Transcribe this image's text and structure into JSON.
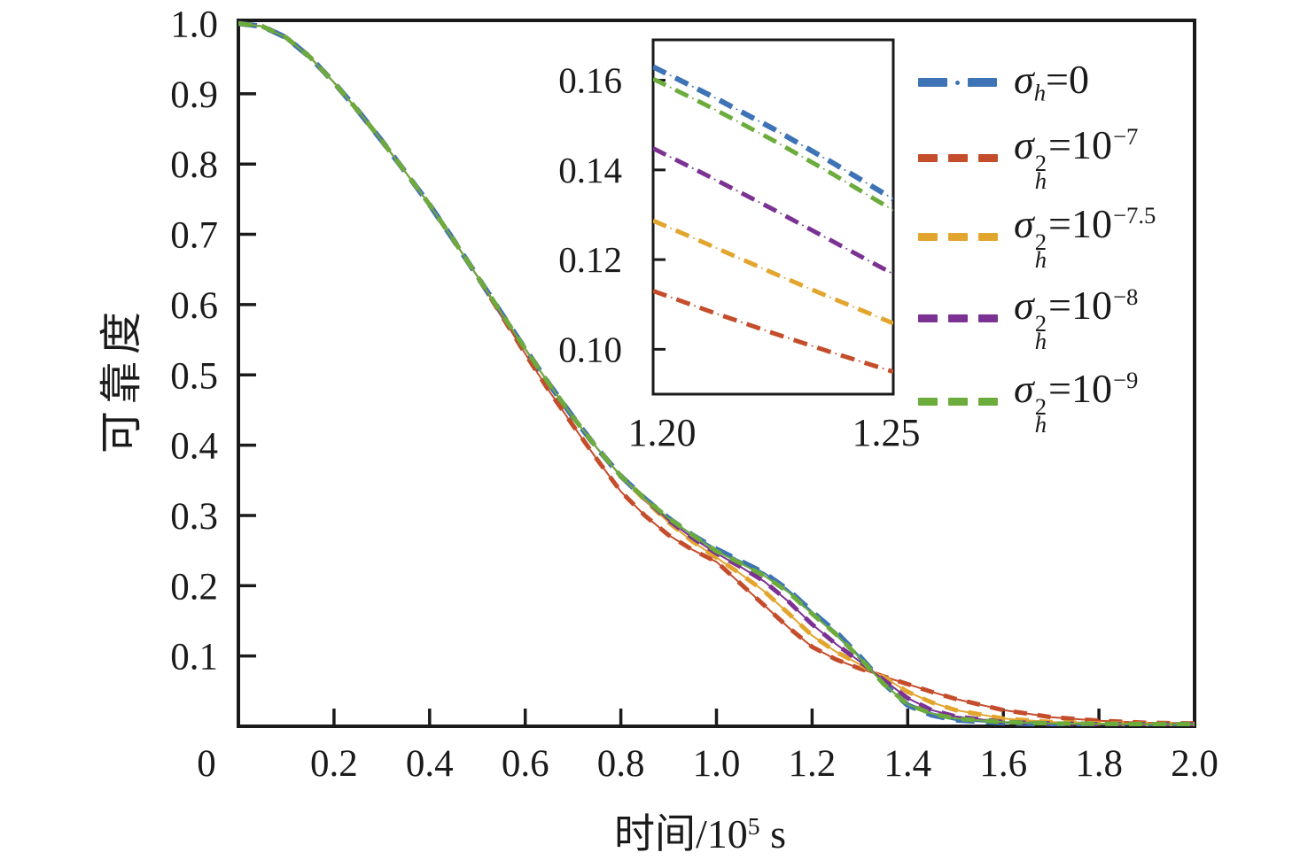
{
  "chart_data": {
    "type": "line",
    "title": "",
    "xlabel": "时间/10^5 s",
    "ylabel": "可靠度",
    "x_axis_label": {
      "pre": "时间/10",
      "sup": "5",
      "post": " s"
    },
    "y_axis_label": "可靠度",
    "xlim": [
      0,
      2.0
    ],
    "ylim": [
      0,
      1.0
    ],
    "grid": false,
    "legend_position": "upper right, outside inset",
    "background": "#FFFFFF",
    "axis_color": "#1A1A1A",
    "x_ticks": [
      0,
      0.2,
      0.4,
      0.6,
      0.8,
      1.0,
      1.2,
      1.4,
      1.6,
      1.8,
      2.0
    ],
    "x_tick_labels": [
      "0",
      "0.2",
      "0.4",
      "0.6",
      "0.8",
      "1.0",
      "1.2",
      "1.4",
      "1.6",
      "1.8",
      "2.0"
    ],
    "y_ticks": [
      0.1,
      0.2,
      0.3,
      0.4,
      0.5,
      0.6,
      0.7,
      0.8,
      0.9,
      1.0
    ],
    "y_tick_labels": [
      "0.1",
      "0.2",
      "0.3",
      "0.4",
      "0.5",
      "0.6",
      "0.7",
      "0.8",
      "0.9",
      "1.0"
    ],
    "x": [
      0.0,
      0.05,
      0.1,
      0.15,
      0.2,
      0.25,
      0.3,
      0.35,
      0.4,
      0.45,
      0.5,
      0.55,
      0.6,
      0.65,
      0.7,
      0.75,
      0.8,
      0.85,
      0.9,
      0.95,
      1.0,
      1.05,
      1.1,
      1.15,
      1.2,
      1.25,
      1.3,
      1.35,
      1.4,
      1.45,
      1.5,
      1.6,
      1.7,
      1.8,
      1.9,
      2.0
    ],
    "series": [
      {
        "name": "sigma-h-0",
        "label": "σh=0",
        "color": "#3E74B5",
        "y": [
          1.0,
          0.996,
          0.98,
          0.952,
          0.916,
          0.876,
          0.833,
          0.788,
          0.742,
          0.692,
          0.64,
          0.588,
          0.537,
          0.487,
          0.44,
          0.396,
          0.356,
          0.324,
          0.296,
          0.272,
          0.252,
          0.235,
          0.218,
          0.194,
          0.163,
          0.134,
          0.099,
          0.061,
          0.03,
          0.016,
          0.009,
          0.005,
          0.003,
          0.0025,
          0.002,
          0.002
        ]
      },
      {
        "name": "sigma2-1e-7",
        "label": "σh2=10^-7",
        "color": "#C44D2B",
        "y": [
          1.0,
          0.996,
          0.98,
          0.952,
          0.916,
          0.876,
          0.833,
          0.788,
          0.742,
          0.692,
          0.64,
          0.585,
          0.53,
          0.477,
          0.428,
          0.38,
          0.334,
          0.3,
          0.272,
          0.251,
          0.234,
          0.203,
          0.172,
          0.141,
          0.113,
          0.095,
          0.082,
          0.071,
          0.06,
          0.049,
          0.039,
          0.023,
          0.013,
          0.008,
          0.005,
          0.004
        ]
      },
      {
        "name": "sigma2-1e-7p5",
        "label": "σh2=10^-7.5",
        "color": "#E2A52D",
        "y": [
          1.0,
          0.996,
          0.98,
          0.952,
          0.916,
          0.876,
          0.833,
          0.788,
          0.742,
          0.692,
          0.64,
          0.588,
          0.537,
          0.487,
          0.44,
          0.396,
          0.356,
          0.322,
          0.29,
          0.263,
          0.24,
          0.217,
          0.192,
          0.161,
          0.129,
          0.106,
          0.088,
          0.07,
          0.049,
          0.034,
          0.023,
          0.011,
          0.006,
          0.004,
          0.0035,
          0.003
        ]
      },
      {
        "name": "sigma2-1e-8",
        "label": "σh2=10^-8",
        "color": "#7C3292",
        "y": [
          1.0,
          0.996,
          0.98,
          0.952,
          0.916,
          0.876,
          0.833,
          0.788,
          0.742,
          0.692,
          0.64,
          0.588,
          0.537,
          0.487,
          0.44,
          0.396,
          0.356,
          0.324,
          0.293,
          0.268,
          0.246,
          0.227,
          0.206,
          0.178,
          0.145,
          0.117,
          0.092,
          0.066,
          0.04,
          0.023,
          0.014,
          0.006,
          0.004,
          0.003,
          0.003,
          0.003
        ]
      },
      {
        "name": "sigma2-1e-9",
        "label": "σh2=10^-9",
        "color": "#6BAC3C",
        "y": [
          1.0,
          0.996,
          0.98,
          0.952,
          0.916,
          0.876,
          0.833,
          0.788,
          0.742,
          0.692,
          0.64,
          0.588,
          0.537,
          0.487,
          0.44,
          0.396,
          0.356,
          0.324,
          0.296,
          0.272,
          0.249,
          0.232,
          0.214,
          0.191,
          0.16,
          0.131,
          0.097,
          0.06,
          0.031,
          0.018,
          0.011,
          0.006,
          0.004,
          0.0035,
          0.003,
          0.003
        ]
      }
    ],
    "inset": {
      "xlim": [
        1.2,
        1.25
      ],
      "ylim": [
        0.09,
        0.169
      ],
      "x_ticks": [
        1.2,
        1.25
      ],
      "x_tick_labels": [
        "1.20",
        "1.25"
      ],
      "y_ticks": [
        0.1,
        0.12,
        0.14,
        0.16
      ],
      "y_tick_labels": [
        "0.10",
        "0.12",
        "0.14",
        "0.16"
      ],
      "x": [
        1.2,
        1.2125,
        1.225,
        1.2375,
        1.25
      ],
      "series": [
        {
          "name": "sigma-h-0",
          "color": "#3E74B5",
          "y": [
            0.163,
            0.1563,
            0.1492,
            0.1415,
            0.1335
          ]
        },
        {
          "name": "sigma2-1e-7",
          "color": "#C44D2B",
          "y": [
            0.113,
            0.1082,
            0.1036,
            0.0992,
            0.095
          ]
        },
        {
          "name": "sigma2-1e-7p5",
          "color": "#E2A52D",
          "y": [
            0.1287,
            0.1229,
            0.117,
            0.1113,
            0.1058
          ]
        },
        {
          "name": "sigma2-1e-8",
          "color": "#7C3292",
          "y": [
            0.1448,
            0.1381,
            0.1312,
            0.124,
            0.1168
          ]
        },
        {
          "name": "sigma2-1e-9",
          "color": "#6BAC3C",
          "y": [
            0.1603,
            0.1537,
            0.1466,
            0.139,
            0.131
          ]
        }
      ]
    },
    "legend": [
      {
        "name": "sigma-h-0",
        "sym": "σ",
        "sub": "h",
        "sup": "",
        "rhs": "=0",
        "exp": "",
        "color": "#3E74B5",
        "pattern": "dash-dot"
      },
      {
        "name": "sigma2-1e-7",
        "sym": "σ",
        "sub": "h",
        "sup": "2",
        "rhs": "=10",
        "exp": "−7",
        "color": "#C44D2B",
        "pattern": "dashes"
      },
      {
        "name": "sigma2-1e-7p5",
        "sym": "σ",
        "sub": "h",
        "sup": "2",
        "rhs": "=10",
        "exp": "−7.5",
        "color": "#E2A52D",
        "pattern": "dashes"
      },
      {
        "name": "sigma2-1e-8",
        "sym": "σ",
        "sub": "h",
        "sup": "2",
        "rhs": "=10",
        "exp": "−8",
        "color": "#7C3292",
        "pattern": "dashes"
      },
      {
        "name": "sigma2-1e-9",
        "sym": "σ",
        "sub": "h",
        "sup": "2",
        "rhs": "=10",
        "exp": "−9",
        "color": "#6BAC3C",
        "pattern": "dashes"
      }
    ]
  }
}
